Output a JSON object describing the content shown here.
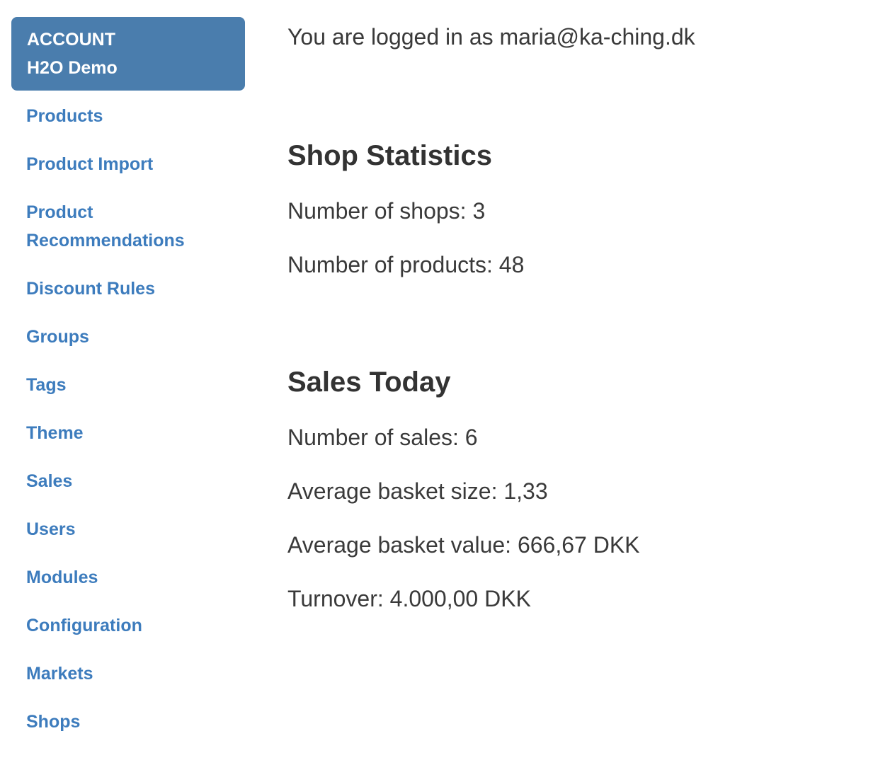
{
  "sidebar": {
    "account": {
      "label": "ACCOUNT",
      "name": "H2O Demo"
    },
    "items": [
      {
        "label": "Products"
      },
      {
        "label": "Product Import"
      },
      {
        "label": "Product Recommendations"
      },
      {
        "label": "Discount Rules"
      },
      {
        "label": "Groups"
      },
      {
        "label": "Tags"
      },
      {
        "label": "Theme"
      },
      {
        "label": "Sales"
      },
      {
        "label": "Users"
      },
      {
        "label": "Modules"
      },
      {
        "label": "Configuration"
      },
      {
        "label": "Markets"
      },
      {
        "label": "Shops"
      }
    ]
  },
  "main": {
    "logged_in_text": "You are logged in as maria@ka-ching.dk",
    "shop_statistics": {
      "title": "Shop Statistics",
      "stats": [
        {
          "label": "Number of shops",
          "value": "3",
          "display": "Number of shops: 3"
        },
        {
          "label": "Number of products",
          "value": "48",
          "display": "Number of products: 48"
        }
      ]
    },
    "sales_today": {
      "title": "Sales Today",
      "stats": [
        {
          "label": "Number of sales",
          "value": "6",
          "display": "Number of sales: 6"
        },
        {
          "label": "Average basket size",
          "value": "1,33",
          "display": "Average basket size: 1,33"
        },
        {
          "label": "Average basket value",
          "value": "666,67 DKK",
          "display": "Average basket value: 666,67 DKK"
        },
        {
          "label": "Turnover",
          "value": "4.000,00 DKK",
          "display": "Turnover: 4.000,00 DKK"
        }
      ]
    }
  },
  "colors": {
    "account_box_bg": "#4A7DAD",
    "account_box_text": "#FFFFFF",
    "link": "#3D7CBD",
    "heading": "#333333",
    "body_text": "#3A3A3A",
    "background": "#FFFFFF"
  }
}
